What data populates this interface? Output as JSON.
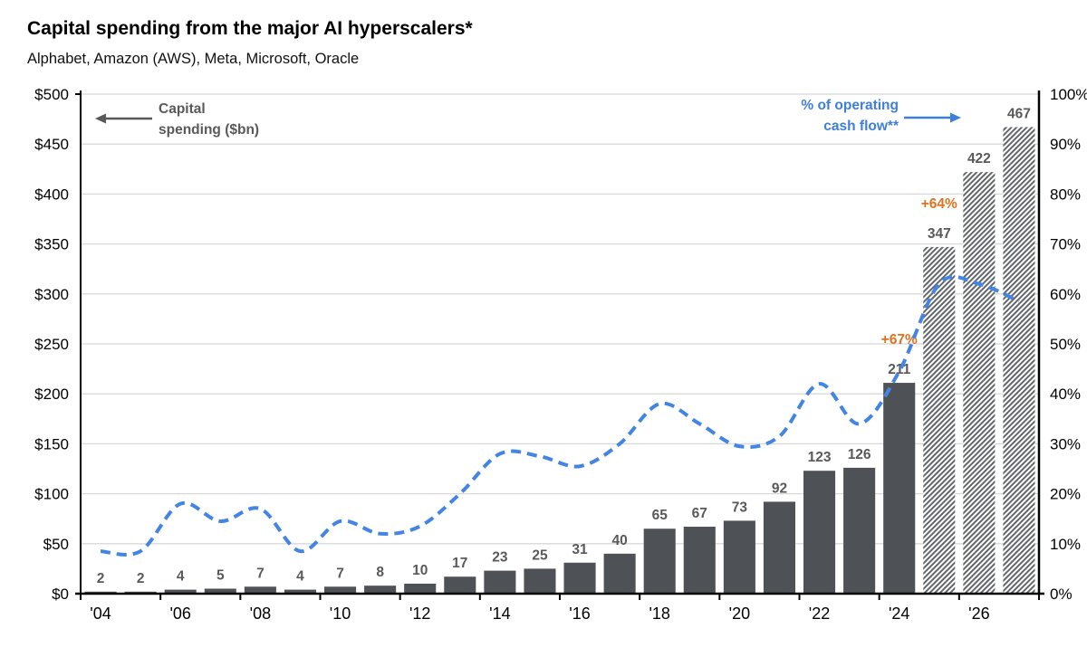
{
  "title": "Capital spending from the major AI hyperscalers*",
  "subtitle": "Alphabet, Amazon (AWS), Meta, Microsoft, Oracle",
  "colors": {
    "bar": "#4e5257",
    "hatch_stroke": "#63676c",
    "line_blue": "#4285e4",
    "legend_blue": "#3e7edc",
    "legend_gray": "#595959",
    "value_label": "#595959",
    "annotation_orange": "#e2711d",
    "axis_text": "#000000",
    "gridline": "#d8d8d8",
    "axis_line": "#000000"
  },
  "chart_data": {
    "type": "bar+line",
    "title": "Capital spending from the major AI hyperscalers*",
    "subtitle": "Alphabet, Amazon (AWS), Meta, Microsoft, Oracle",
    "x_tick_labels": [
      "'04",
      "'06",
      "'08",
      "'10",
      "'12",
      "'14",
      "'16",
      "'18",
      "'20",
      "'22",
      "'24",
      "'26"
    ],
    "bar_series": {
      "name": "Capital spending ($bn)",
      "values": [
        2,
        2,
        4,
        5,
        7,
        4,
        7,
        8,
        10,
        17,
        23,
        25,
        31,
        40,
        65,
        67,
        73,
        92,
        123,
        126,
        211,
        347,
        422,
        467
      ],
      "value_labels": [
        "2",
        "2",
        "4",
        "5",
        "7",
        "4",
        "7",
        "8",
        "10",
        "17",
        "23",
        "25",
        "31",
        "40",
        "65",
        "67",
        "73",
        "92",
        "123",
        "126",
        "211",
        "347",
        "422",
        "467"
      ],
      "hatched_from_index": 21
    },
    "line_series": {
      "name": "% of operating cash flow**",
      "axis": "right",
      "values_percent": [
        8.5,
        8.5,
        18,
        14.5,
        17,
        8.5,
        14.5,
        12,
        13.5,
        20,
        28,
        27.5,
        25.5,
        30,
        38,
        34,
        29.5,
        31.5,
        42,
        34,
        44.5,
        62,
        62,
        58.5
      ]
    },
    "growth_annotations": [
      {
        "label": "+67%",
        "bar_index": 20
      },
      {
        "label": "+64%",
        "bar_index": 21
      }
    ],
    "left_axis": {
      "title_line1": "Capital",
      "title_line2": "spending ($bn)",
      "min": 0,
      "max": 500,
      "step": 50,
      "tick_labels": [
        "$0",
        "$50",
        "$100",
        "$150",
        "$200",
        "$250",
        "$300",
        "$350",
        "$400",
        "$450",
        "$500"
      ]
    },
    "right_axis": {
      "title_line1": "% of operating",
      "title_line2": "cash flow**",
      "min": 0,
      "max": 100,
      "step": 10,
      "tick_labels": [
        "0%",
        "10%",
        "20%",
        "30%",
        "40%",
        "50%",
        "60%",
        "70%",
        "80%",
        "90%",
        "100%"
      ]
    },
    "grid": true,
    "legend_position": "inside-top"
  }
}
